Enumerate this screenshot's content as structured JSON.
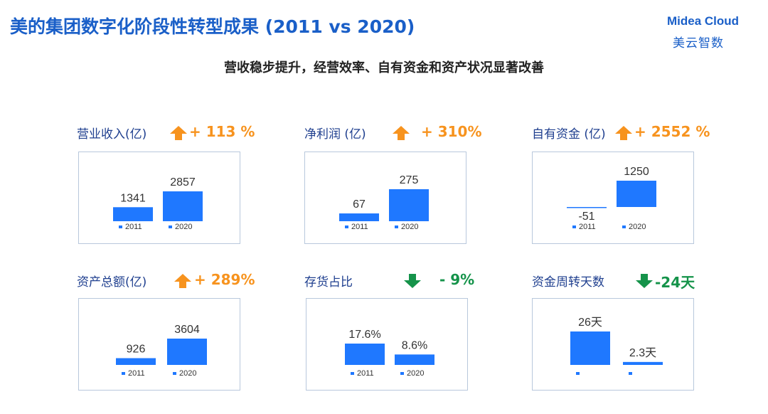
{
  "title": "美的集团数字化阶段性转型成果 (2011 vs 2020)",
  "subtitle": "营收稳步提升，经营效率、自有资金和资产状况显著改善",
  "logo": {
    "en": "Midea Cloud",
    "cn": "美云智数"
  },
  "colors": {
    "title": "#1a5fc8",
    "bar": "#1f78ff",
    "up": "#f7931e",
    "down": "#15934a",
    "label": "#1f3f8f"
  },
  "chart_data": [
    {
      "type": "bar",
      "title": "营业收入(亿)",
      "change": "+ 113 %",
      "direction": "up",
      "categories": [
        "2011",
        "2020"
      ],
      "values": [
        1341,
        2857
      ],
      "value_labels": [
        "1341",
        "2857"
      ]
    },
    {
      "type": "bar",
      "title": "净利润 (亿)",
      "change": "+ 310%",
      "direction": "up",
      "categories": [
        "2011",
        "2020"
      ],
      "values": [
        67,
        275
      ],
      "value_labels": [
        "67",
        "275"
      ]
    },
    {
      "type": "bar",
      "title": "自有资金 (亿)",
      "change": "+ 2552 %",
      "direction": "up",
      "categories": [
        "2011",
        "2020"
      ],
      "values": [
        -51,
        1250
      ],
      "value_labels": [
        "-51",
        "1250"
      ]
    },
    {
      "type": "bar",
      "title": "资产总额(亿)",
      "change": "+ 289%",
      "direction": "up",
      "categories": [
        "2011",
        "2020"
      ],
      "values": [
        926,
        3604
      ],
      "value_labels": [
        "926",
        "3604"
      ]
    },
    {
      "type": "bar",
      "title": "存货占比",
      "change": "- 9%",
      "direction": "down",
      "categories": [
        "2011",
        "2020"
      ],
      "values": [
        17.6,
        8.6
      ],
      "value_labels": [
        "17.6%",
        "8.6%"
      ]
    },
    {
      "type": "bar",
      "title": "资金周转天数",
      "change": "-24天",
      "direction": "down",
      "categories": [
        "",
        ""
      ],
      "values": [
        26,
        2.3
      ],
      "value_labels": [
        "26天",
        "2.3天"
      ]
    }
  ]
}
